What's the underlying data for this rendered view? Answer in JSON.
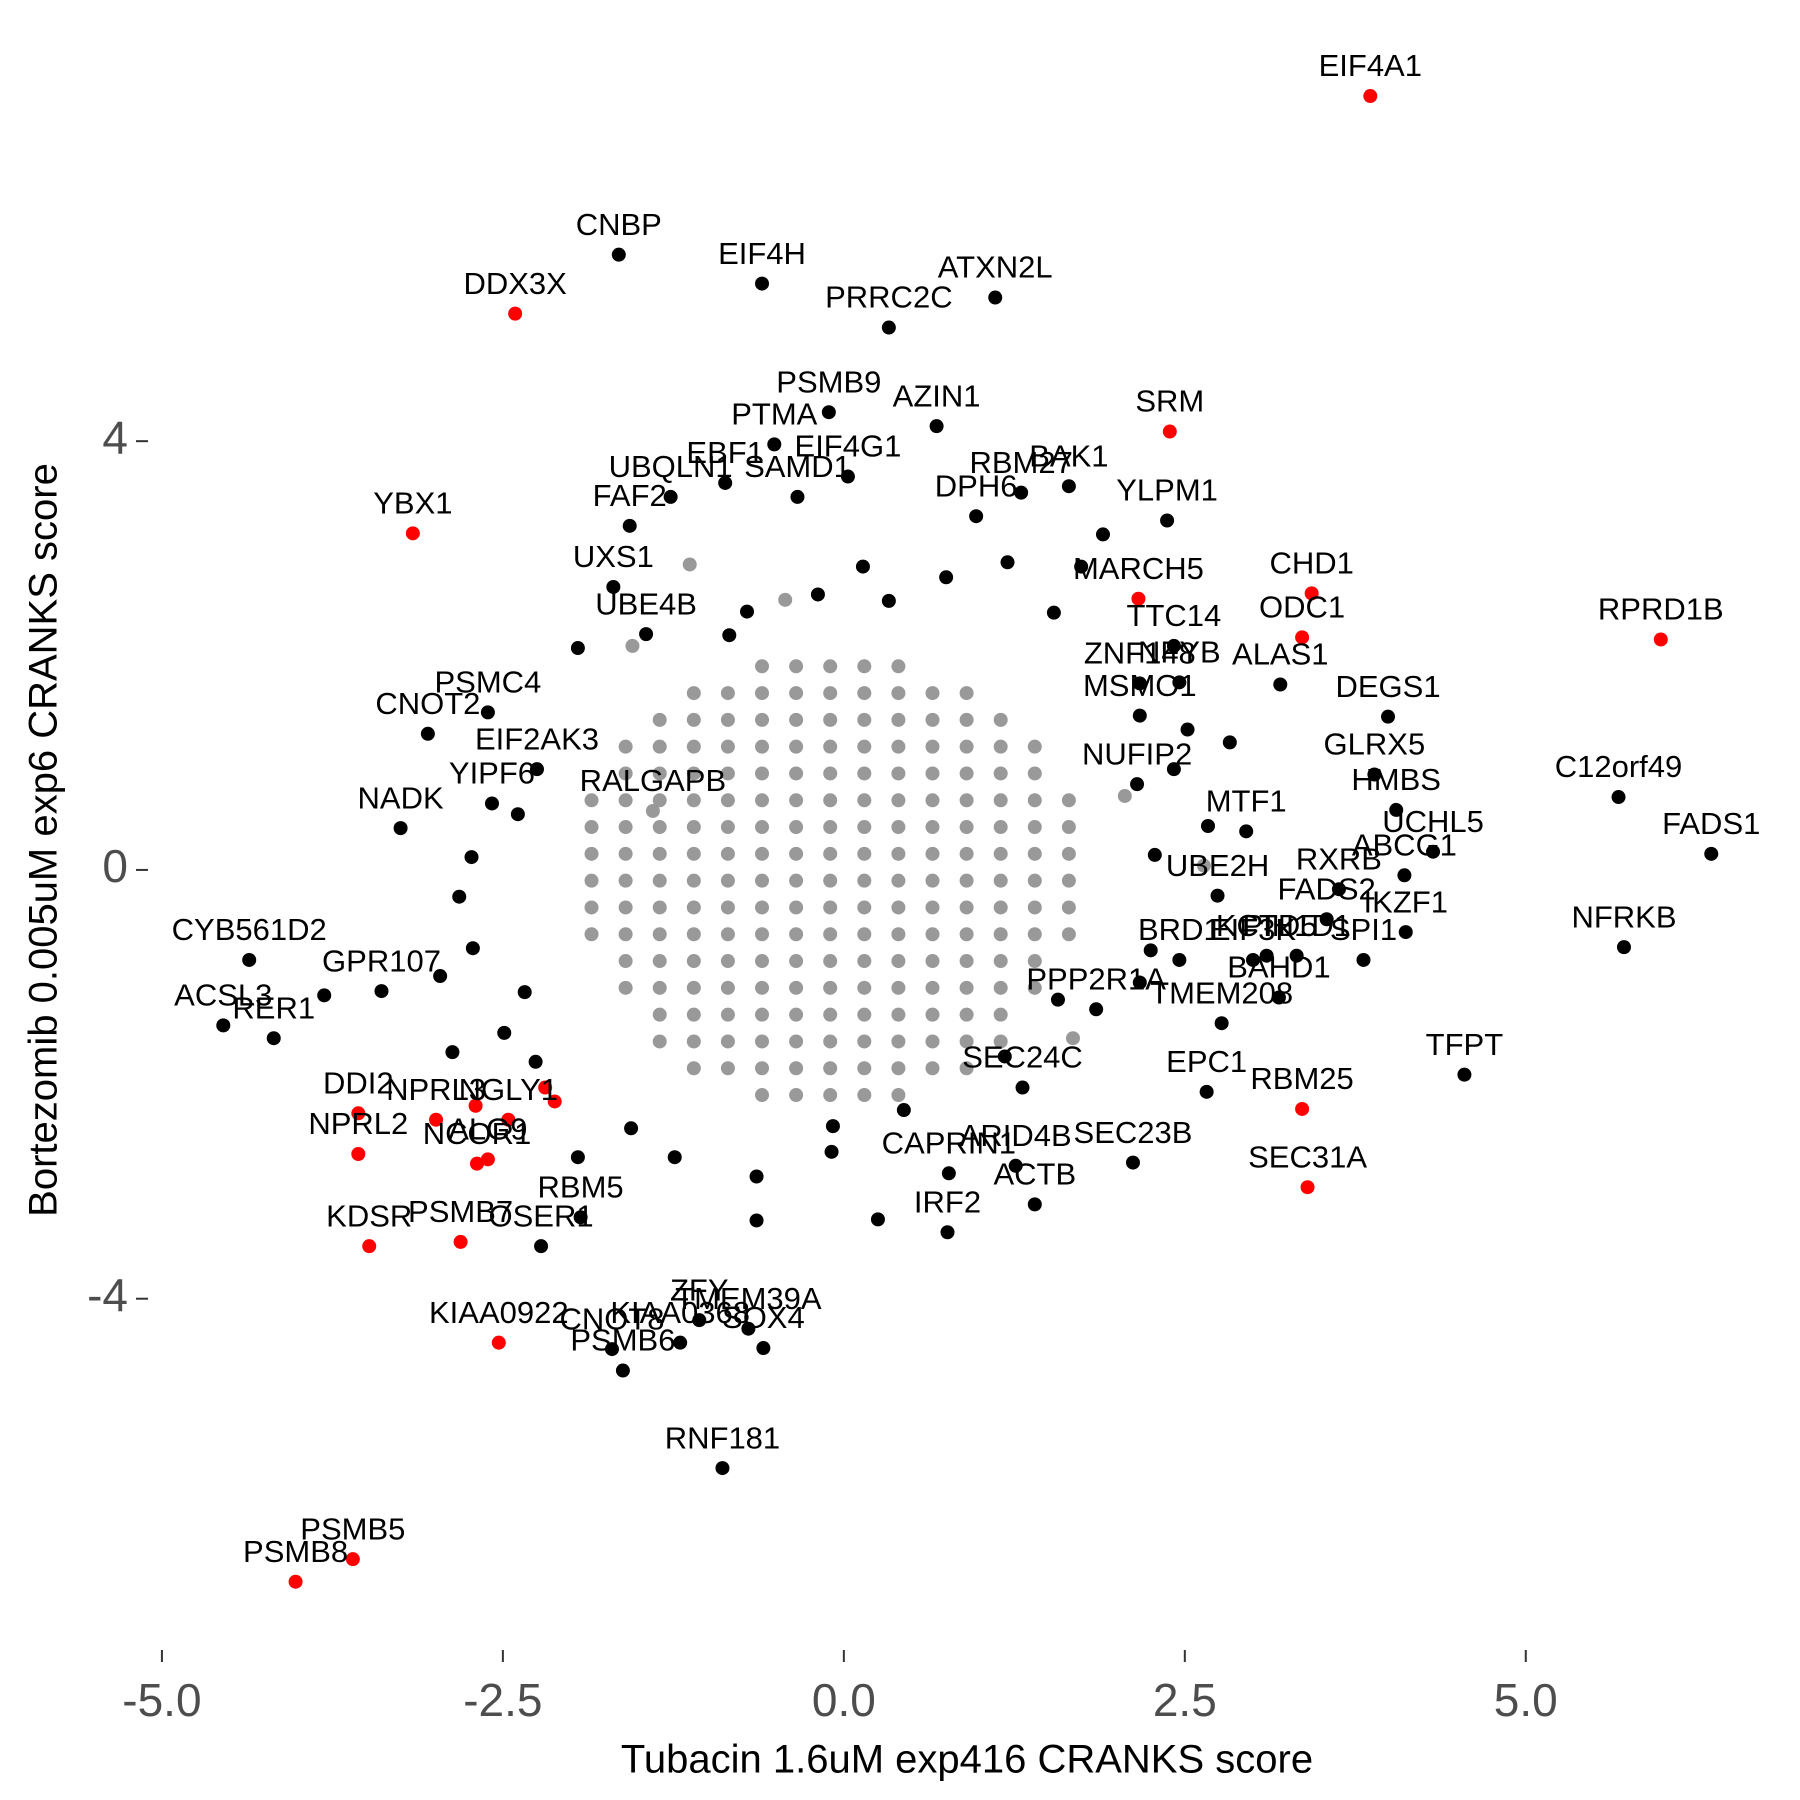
{
  "chart_data": {
    "type": "scatter",
    "xlabel": "Tubacin 1.6uM exp416 CRANKS score",
    "ylabel": "Bortezomib 0.005uM exp6 CRANKS score",
    "xlim": [
      -5.3,
      6.6
    ],
    "ylim": [
      -7.1,
      7.5
    ],
    "xticks": [
      {
        "value": -5,
        "label": "-5.0"
      },
      -2.5,
      {
        "value": 0,
        "label": "0.0"
      },
      2.5,
      {
        "value": 5,
        "label": "5.0"
      }
    ],
    "yticks": [
      -4,
      0,
      4
    ],
    "series": [
      {
        "color": "#999999",
        "x": [
          -0.6,
          -0.35,
          -0.1,
          0.15,
          0.4,
          -1.1,
          -0.85,
          -0.6,
          -0.35,
          -0.1,
          0.15,
          0.4,
          0.65,
          0.9,
          -1.35,
          -1.1,
          -0.85,
          -0.6,
          -0.35,
          -0.1,
          0.15,
          0.4,
          0.65,
          0.9,
          1.15,
          -1.6,
          -1.35,
          -1.1,
          -0.85,
          -0.6,
          -0.35,
          -0.1,
          0.15,
          0.4,
          0.65,
          0.9,
          1.15,
          1.4,
          -1.6,
          -1.35,
          -1.1,
          -0.85,
          -0.6,
          -0.35,
          -0.1,
          0.15,
          0.4,
          0.65,
          0.9,
          1.15,
          1.4,
          -1.85,
          -1.6,
          -1.35,
          -1.1,
          -0.85,
          -0.6,
          -0.35,
          -0.1,
          0.15,
          0.4,
          0.65,
          0.9,
          1.15,
          1.4,
          1.65,
          -1.85,
          -1.6,
          -1.35,
          -1.1,
          -0.85,
          -0.6,
          -0.35,
          -0.1,
          0.15,
          0.4,
          0.65,
          0.9,
          1.15,
          1.4,
          1.65,
          -1.85,
          -1.6,
          -1.35,
          -1.1,
          -0.85,
          -0.6,
          -0.35,
          -0.1,
          0.15,
          0.4,
          0.65,
          0.9,
          1.15,
          1.4,
          1.65,
          -1.85,
          -1.6,
          -1.35,
          -1.1,
          -0.85,
          -0.6,
          -0.35,
          -0.1,
          0.15,
          0.4,
          0.65,
          0.9,
          1.15,
          1.4,
          1.65,
          -1.85,
          -1.6,
          -1.35,
          -1.1,
          -0.85,
          -0.6,
          -0.35,
          -0.1,
          0.15,
          0.4,
          0.65,
          0.9,
          1.15,
          1.4,
          1.65,
          -1.85,
          -1.6,
          -1.35,
          -1.1,
          -0.85,
          -0.6,
          -0.35,
          -0.1,
          0.15,
          0.4,
          0.65,
          0.9,
          1.15,
          1.4,
          1.65,
          -1.6,
          -1.35,
          -1.1,
          -0.85,
          -0.6,
          -0.35,
          -0.1,
          0.15,
          0.4,
          0.65,
          0.9,
          1.15,
          1.4,
          -1.6,
          -1.35,
          -1.1,
          -0.85,
          -0.6,
          -0.35,
          -0.1,
          0.15,
          0.4,
          0.65,
          0.9,
          1.15,
          1.4,
          -1.35,
          -1.1,
          -0.85,
          -0.6,
          -0.35,
          -0.1,
          0.15,
          0.4,
          0.65,
          0.9,
          1.15,
          -1.35,
          -1.1,
          -0.85,
          -0.6,
          -0.35,
          -0.1,
          0.15,
          0.4,
          0.65,
          0.9,
          1.15,
          -1.1,
          -0.85,
          -0.6,
          -0.35,
          -0.1,
          0.15,
          0.4,
          0.65,
          0.9,
          -0.6,
          -0.35,
          -0.1,
          0.15,
          0.4,
          -1.13,
          -1.55,
          -0.43,
          1.68,
          2.64,
          2.06
        ],
        "y": [
          1.9,
          1.9,
          1.9,
          1.9,
          1.9,
          1.65,
          1.65,
          1.65,
          1.65,
          1.65,
          1.65,
          1.65,
          1.65,
          1.65,
          1.4,
          1.4,
          1.4,
          1.4,
          1.4,
          1.4,
          1.4,
          1.4,
          1.4,
          1.4,
          1.4,
          1.15,
          1.15,
          1.15,
          1.15,
          1.15,
          1.15,
          1.15,
          1.15,
          1.15,
          1.15,
          1.15,
          1.15,
          1.15,
          0.9,
          0.9,
          0.9,
          0.9,
          0.9,
          0.9,
          0.9,
          0.9,
          0.9,
          0.9,
          0.9,
          0.9,
          0.9,
          0.65,
          0.65,
          0.65,
          0.65,
          0.65,
          0.65,
          0.65,
          0.65,
          0.65,
          0.65,
          0.65,
          0.65,
          0.65,
          0.65,
          0.65,
          0.4,
          0.4,
          0.4,
          0.4,
          0.4,
          0.4,
          0.4,
          0.4,
          0.4,
          0.4,
          0.4,
          0.4,
          0.4,
          0.4,
          0.4,
          0.15,
          0.15,
          0.15,
          0.15,
          0.15,
          0.15,
          0.15,
          0.15,
          0.15,
          0.15,
          0.15,
          0.15,
          0.15,
          0.15,
          0.15,
          -0.1,
          -0.1,
          -0.1,
          -0.1,
          -0.1,
          -0.1,
          -0.1,
          -0.1,
          -0.1,
          -0.1,
          -0.1,
          -0.1,
          -0.1,
          -0.1,
          -0.1,
          -0.35,
          -0.35,
          -0.35,
          -0.35,
          -0.35,
          -0.35,
          -0.35,
          -0.35,
          -0.35,
          -0.35,
          -0.35,
          -0.35,
          -0.35,
          -0.35,
          -0.35,
          -0.6,
          -0.6,
          -0.6,
          -0.6,
          -0.6,
          -0.6,
          -0.6,
          -0.6,
          -0.6,
          -0.6,
          -0.6,
          -0.6,
          -0.6,
          -0.6,
          -0.6,
          -0.85,
          -0.85,
          -0.85,
          -0.85,
          -0.85,
          -0.85,
          -0.85,
          -0.85,
          -0.85,
          -0.85,
          -0.85,
          -0.85,
          -0.85,
          -1.1,
          -1.1,
          -1.1,
          -1.1,
          -1.1,
          -1.1,
          -1.1,
          -1.1,
          -1.1,
          -1.1,
          -1.1,
          -1.1,
          -1.1,
          -1.35,
          -1.35,
          -1.35,
          -1.35,
          -1.35,
          -1.35,
          -1.35,
          -1.35,
          -1.35,
          -1.35,
          -1.35,
          -1.6,
          -1.6,
          -1.6,
          -1.6,
          -1.6,
          -1.6,
          -1.6,
          -1.6,
          -1.6,
          -1.6,
          -1.6,
          -1.85,
          -1.85,
          -1.85,
          -1.85,
          -1.85,
          -1.85,
          -1.85,
          -1.85,
          -1.85,
          -2.1,
          -2.1,
          -2.1,
          -2.1,
          -2.1,
          2.85,
          2.09,
          2.52,
          -1.57,
          0.04,
          0.69
        ]
      },
      {
        "color": "#999999",
        "x": [
          -1.4
        ],
        "y": [
          0.55
        ],
        "labels": [
          "RALGAPB"
        ]
      },
      {
        "color": "#000000",
        "x": [
          -1.65,
          -0.6,
          1.11,
          0.33,
          -0.11,
          0.68,
          -0.51,
          0.03,
          -0.87,
          1.3,
          1.65,
          -1.27,
          0.97,
          2.37,
          -0.34,
          -1.57,
          -1.69,
          2.42,
          2.17,
          2.46,
          3.2,
          3.99,
          -2.61,
          -3.05,
          2.17,
          -1.45,
          -2.25,
          3.89,
          2.15,
          5.68,
          4.05,
          -2.58,
          -3.25,
          2.95,
          4.32,
          6.36,
          4.11,
          3.63,
          2.74,
          3.54,
          4.12,
          5.72,
          3.81,
          -4.36,
          2.46,
          3.1,
          3.32,
          3.0,
          3.19,
          -4.55,
          -3.39,
          -4.18,
          1.85,
          4.55,
          1.31,
          2.66,
          2.12,
          1.4,
          1.26,
          0.77,
          0.76,
          -1.93,
          -2.22,
          -1.06,
          -0.7,
          -0.59,
          -1.7,
          -1.62,
          -1.2,
          -0.89,
          2.77,
          -0.84,
          -0.71,
          -0.19,
          0.14,
          0.33,
          0.75,
          1.2,
          1.54,
          1.9,
          1.74,
          2.52,
          2.83,
          2.42,
          2.67,
          2.28,
          2.25,
          2.17,
          1.57,
          1.18,
          0.44,
          -0.09,
          -0.64,
          -1.24,
          -1.56,
          -1.95,
          -2.26,
          -2.49,
          -2.34,
          -2.72,
          -2.82,
          -2.73,
          -2.39,
          -1.95,
          -2.96,
          -2.87,
          0.25,
          -0.64,
          -0.08,
          -3.81
        ],
        "y": [
          5.74,
          5.47,
          5.34,
          5.06,
          4.27,
          4.14,
          3.97,
          3.67,
          3.61,
          3.52,
          3.58,
          3.48,
          3.3,
          3.26,
          3.48,
          3.21,
          2.64,
          2.09,
          1.74,
          1.75,
          1.73,
          1.43,
          1.47,
          1.27,
          1.44,
          2.2,
          0.94,
          0.89,
          0.8,
          0.68,
          0.56,
          0.62,
          0.39,
          0.36,
          0.17,
          0.15,
          -0.05,
          -0.18,
          -0.24,
          -0.46,
          -0.58,
          -0.72,
          -0.84,
          -0.84,
          -0.84,
          -0.8,
          -0.8,
          -0.84,
          -1.19,
          -1.45,
          -1.13,
          -1.57,
          -1.3,
          -1.91,
          -2.03,
          -2.07,
          -2.73,
          -3.12,
          -2.76,
          -2.83,
          -3.38,
          -3.24,
          -3.51,
          -4.2,
          -4.28,
          -4.46,
          -4.47,
          -4.67,
          -4.41,
          -5.58,
          -1.43,
          2.19,
          2.41,
          2.57,
          2.83,
          2.51,
          2.73,
          2.87,
          2.4,
          3.13,
          2.83,
          1.31,
          1.19,
          0.94,
          0.41,
          0.14,
          -0.75,
          -1.05,
          -1.21,
          -1.74,
          -2.24,
          -2.63,
          -2.86,
          -2.68,
          -2.41,
          -2.68,
          -1.79,
          -1.52,
          -1.14,
          -0.73,
          -0.25,
          0.12,
          0.52,
          2.07,
          -0.99,
          -1.7,
          -3.26,
          -3.27,
          -2.39,
          -1.17
        ],
        "labels": [
          "CNBP",
          "EIF4H",
          "ATXN2L",
          "PRRC2C",
          "PSMB9",
          "AZIN1",
          "PTMA",
          "EIF4G1",
          "EBF1",
          "RBM27",
          "BAK1",
          "UBQLN1",
          "DPH6",
          "YLPM1",
          "SAMD1",
          "FAF2",
          "UXS1",
          "TTC14",
          "ZNF148",
          "NFYB",
          "ALAS1",
          "DEGS1",
          "PSMC4",
          "CNOT2",
          "MSMO1",
          "UBE4B",
          "EIF2AK3",
          "GLRX5",
          "NUFIP2",
          "C12orf49",
          "HMBS",
          "YIPF6",
          "NADK",
          "MTF1",
          "UCHL5",
          "FADS1",
          "ABCG1",
          "RXRB",
          "UBE2H",
          "FADS2",
          "IKZF1",
          "NFRKB",
          "SPI1",
          "CYB561D2",
          "BRD1",
          "KCTD5",
          "PIH1D1",
          "EIF3K",
          "BAHD1",
          "ACSL3",
          "GPR107",
          "RER1",
          "PPP2R1A",
          "TFPT",
          "SEC24C",
          "EPC1",
          "SEC23B",
          "ACTB",
          "ARID4B",
          "CAPRIN1",
          "IRF2",
          "RBM5",
          "OSER1",
          "ZFY",
          "TMEM39A",
          "SOX4",
          "CNOT8",
          "PSMB6",
          "KIAA0368",
          "RNF181",
          "TMEM208",
          null,
          null,
          null,
          null,
          null,
          null,
          null,
          null,
          null,
          null,
          null,
          null,
          null,
          null,
          null,
          null,
          null,
          null,
          null,
          null,
          null,
          null,
          null,
          null,
          null,
          null,
          null,
          null,
          null,
          null,
          null,
          null,
          null,
          null,
          null,
          null,
          null,
          null,
          null
        ]
      },
      {
        "color": "#ff0000",
        "x": [
          3.86,
          -2.41,
          -3.16,
          2.39,
          2.16,
          3.43,
          3.36,
          5.99,
          3.36,
          3.4,
          -3.56,
          -3.56,
          -2.61,
          -2.99,
          -3.48,
          -2.69,
          -2.81,
          -2.46,
          -2.53,
          -3.6,
          -4.02,
          -2.7,
          -2.19,
          -2.12
        ],
        "y": [
          7.22,
          5.19,
          3.14,
          4.09,
          2.53,
          2.58,
          2.17,
          2.15,
          -2.23,
          -2.96,
          -2.27,
          -2.65,
          -2.7,
          -2.33,
          -3.51,
          -2.74,
          -3.47,
          -2.33,
          -4.41,
          -6.43,
          -6.64,
          -2.2,
          -2.03,
          -2.16
        ],
        "labels": [
          "EIF4A1",
          "DDX3X",
          "YBX1",
          "SRM",
          "MARCH5",
          "CHD1",
          "ODC1",
          "RPRD1B",
          "RBM25",
          "SEC31A",
          "DDI2",
          "NPRL2",
          "ALG9",
          "NPRL3",
          "KDSR",
          "NCOR1",
          "PSMB7",
          "NGLY1",
          "KIAA0922",
          "PSMB5",
          "PSMB8",
          null,
          null,
          null
        ]
      }
    ]
  }
}
